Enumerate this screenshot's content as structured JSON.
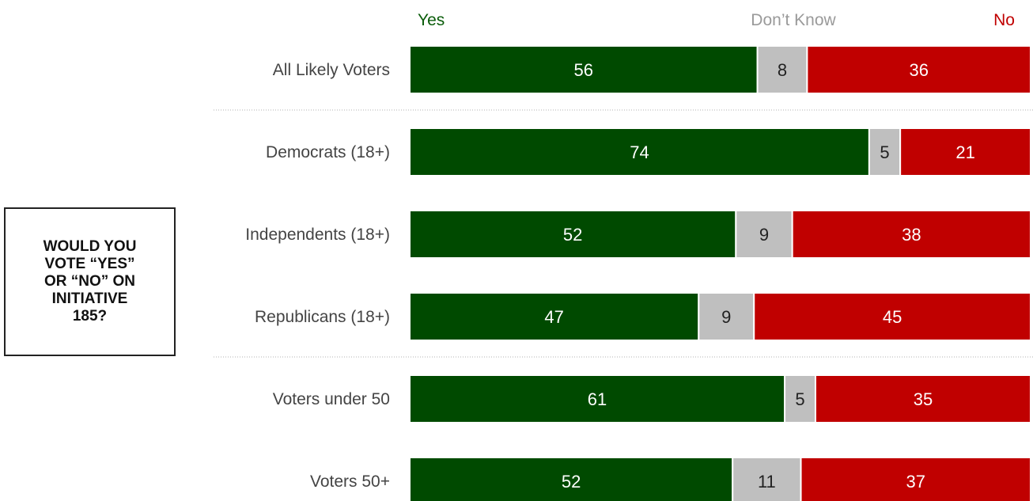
{
  "question": "WOULD YOU\nVOTE “YES”\nOR “NO” ON\nINITIATIVE\n185?",
  "chart_data": {
    "type": "bar",
    "orientation": "horizontal",
    "stacked": true,
    "categories": [
      "All Likely Voters",
      "Democrats (18+)",
      "Independents (18+)",
      "Republicans (18+)",
      "Voters under 50",
      "Voters 50+"
    ],
    "series": [
      {
        "name": "Yes",
        "color": "#004a00",
        "label_color": "#ffffff",
        "values": [
          56,
          74,
          52,
          47,
          61,
          52
        ]
      },
      {
        "name": "Don’t Know",
        "color": "#bfbfbf",
        "label_color": "#222222",
        "values": [
          8,
          5,
          9,
          9,
          5,
          11
        ]
      },
      {
        "name": "No",
        "color": "#c00000",
        "label_color": "#ffffff",
        "values": [
          36,
          21,
          38,
          45,
          35,
          37
        ]
      }
    ],
    "legend_colors": {
      "Yes": "#0a5c0a",
      "Don’t Know": "#9a9a9a",
      "No": "#c00000"
    },
    "separators_after": [
      0,
      3
    ],
    "legend_position": "top"
  }
}
